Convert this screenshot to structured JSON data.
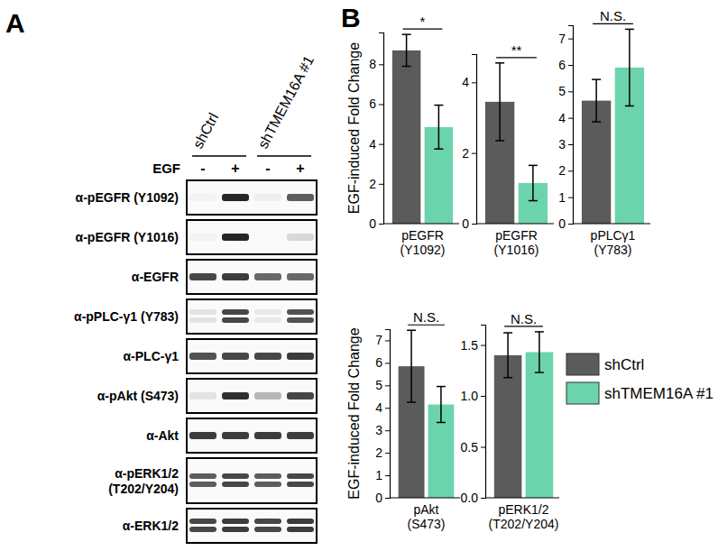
{
  "panel_a": {
    "label": "A",
    "treatment_label": "EGF",
    "groups": [
      {
        "label": "shCtrl",
        "lanes": [
          "-",
          "+"
        ]
      },
      {
        "label": "shTMEM16A #1",
        "lanes": [
          "-",
          "+"
        ]
      }
    ],
    "rows": [
      {
        "label": [
          "α-pEGFR (Y1092)"
        ],
        "doublet": false,
        "bands": [
          0.03,
          0.95,
          0.05,
          0.7
        ]
      },
      {
        "label": [
          "α-pEGFR (Y1016)"
        ],
        "doublet": false,
        "bands": [
          0.03,
          0.95,
          0.0,
          0.15
        ]
      },
      {
        "label": [
          "α-EGFR"
        ],
        "doublet": false,
        "bands": [
          0.8,
          0.85,
          0.65,
          0.65
        ]
      },
      {
        "label": [
          "α-pPLC-γ1 (Y783)"
        ],
        "doublet": true,
        "bands": [
          0.1,
          0.8,
          0.08,
          0.75
        ]
      },
      {
        "label": [
          "α-PLC-γ1"
        ],
        "doublet": false,
        "bands": [
          0.75,
          0.8,
          0.8,
          0.85
        ]
      },
      {
        "label": [
          "α-pAkt (S473)"
        ],
        "doublet": false,
        "bands": [
          0.1,
          0.9,
          0.3,
          0.8
        ]
      },
      {
        "label": [
          "α-Akt"
        ],
        "doublet": false,
        "bands": [
          0.85,
          0.85,
          0.85,
          0.85
        ]
      },
      {
        "label": [
          "α-pERK1/2",
          "(T202/Y204)"
        ],
        "doublet": true,
        "bands": [
          0.7,
          0.8,
          0.7,
          0.8
        ]
      },
      {
        "label": [
          "α-ERK1/2"
        ],
        "doublet": true,
        "bands": [
          0.8,
          0.85,
          0.8,
          0.85
        ]
      }
    ]
  },
  "panel_b_label": "B",
  "legend": [
    {
      "name": "shCtrl",
      "color": "#5b5b5b"
    },
    {
      "name": "shTMEM16A #1",
      "color": "#6bd4ad"
    }
  ],
  "chart_data": [
    {
      "type": "bar",
      "xlabel": "pEGFR (Y1092)",
      "ylabel": "EGF-induced Fold Change",
      "annotation": "*",
      "categories": [
        null,
        null
      ],
      "values": [
        8.7,
        4.85
      ],
      "error": [
        0.8,
        1.1
      ],
      "colors": [
        "#5b5b5b",
        "#6bd4ad"
      ],
      "ylim": [
        0,
        9.6
      ],
      "yticks": [
        0,
        2,
        4,
        6,
        8
      ]
    },
    {
      "type": "bar",
      "xlabel": "pEGFR (Y1016)",
      "annotation": "**",
      "categories": [
        null,
        null
      ],
      "values": [
        3.45,
        1.15
      ],
      "error": [
        1.1,
        0.5
      ],
      "colors": [
        "#5b5b5b",
        "#6bd4ad"
      ],
      "ylim": [
        0,
        4.8
      ],
      "yticks": [
        0,
        2,
        4
      ]
    },
    {
      "type": "bar",
      "xlabel": "pPLCγ1 (Y783)",
      "annotation": "N.S.",
      "categories": [
        null,
        null
      ],
      "values": [
        4.65,
        5.9
      ],
      "error": [
        0.8,
        1.45
      ],
      "colors": [
        "#5b5b5b",
        "#6bd4ad"
      ],
      "ylim": [
        0,
        7.5
      ],
      "yticks": [
        0,
        1,
        2,
        3,
        4,
        5,
        6,
        7
      ]
    },
    {
      "type": "bar",
      "xlabel": "pAkt (S473)",
      "ylabel": "EGF-induced Fold Change",
      "annotation": "N.S.",
      "categories": [
        null,
        null
      ],
      "values": [
        5.85,
        4.15
      ],
      "error": [
        1.6,
        0.8
      ],
      "colors": [
        "#5b5b5b",
        "#6bd4ad"
      ],
      "ylim": [
        0,
        7.5
      ],
      "yticks": [
        0,
        1,
        2,
        3,
        4,
        5,
        6,
        7
      ]
    },
    {
      "type": "bar",
      "xlabel": "pERK1/2 (T202/Y204)",
      "annotation": "N.S.",
      "categories": [
        null,
        null
      ],
      "values": [
        1.4,
        1.43
      ],
      "error": [
        0.22,
        0.2
      ],
      "colors": [
        "#5b5b5b",
        "#6bd4ad"
      ],
      "ylim": [
        0,
        1.7
      ],
      "yticks": [
        {
          "value": 0,
          "label": "0.0"
        },
        {
          "value": 0.5,
          "label": "0.5"
        },
        {
          "value": 1,
          "label": "1.0"
        },
        {
          "value": 1.5,
          "label": "1.5"
        }
      ]
    }
  ]
}
